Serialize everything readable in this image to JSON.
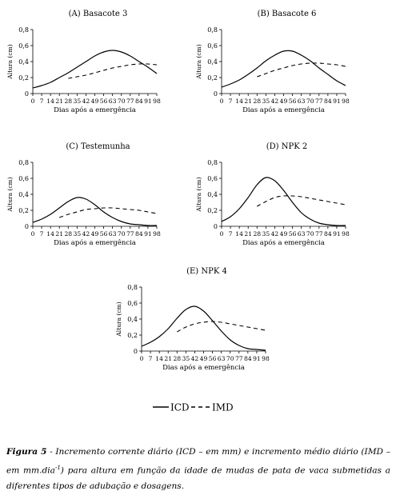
{
  "chart_data": [
    {
      "type": "line",
      "title": "(A) Basacote 3",
      "xlabel": "Dias após a emergência",
      "ylabel": "Altura (cm)",
      "x_ticks": [
        "0",
        "7",
        "14",
        "21",
        "28",
        "35",
        "42",
        "49",
        "56",
        "63",
        "70",
        "77",
        "84",
        "91",
        "98"
      ],
      "y_ticks": [
        "0",
        "0,2",
        "0,4",
        "0,6",
        "0,8"
      ],
      "xlim": [
        0,
        98
      ],
      "ylim": [
        0,
        0.8
      ],
      "series": [
        {
          "name": "ICD",
          "style": "solid",
          "x": [
            0,
            7,
            14,
            21,
            28,
            35,
            42,
            49,
            56,
            63,
            70,
            77,
            84,
            91,
            98
          ],
          "y": [
            0.07,
            0.1,
            0.14,
            0.2,
            0.26,
            0.33,
            0.4,
            0.47,
            0.52,
            0.54,
            0.52,
            0.47,
            0.4,
            0.33,
            0.25
          ]
        },
        {
          "name": "IMD",
          "style": "dashed",
          "x": [
            28,
            35,
            42,
            49,
            56,
            63,
            70,
            77,
            84,
            91,
            98
          ],
          "y": [
            0.19,
            0.21,
            0.23,
            0.26,
            0.29,
            0.32,
            0.34,
            0.36,
            0.37,
            0.37,
            0.36
          ]
        }
      ]
    },
    {
      "type": "line",
      "title": "(B) Basacote 6",
      "xlabel": "Dias após a emergência",
      "ylabel": "Altura (cm)",
      "x_ticks": [
        "0",
        "7",
        "14",
        "21",
        "28",
        "35",
        "42",
        "49",
        "56",
        "63",
        "70",
        "77",
        "84",
        "91",
        "98"
      ],
      "y_ticks": [
        "0",
        "0,2",
        "0,4",
        "0,6",
        "0,8"
      ],
      "xlim": [
        0,
        98
      ],
      "ylim": [
        0,
        0.8
      ],
      "series": [
        {
          "name": "ICD",
          "style": "solid",
          "x": [
            0,
            7,
            14,
            21,
            28,
            35,
            42,
            49,
            56,
            63,
            70,
            77,
            84,
            91,
            98
          ],
          "y": [
            0.08,
            0.12,
            0.17,
            0.24,
            0.32,
            0.41,
            0.48,
            0.53,
            0.53,
            0.48,
            0.41,
            0.32,
            0.24,
            0.16,
            0.1
          ]
        },
        {
          "name": "IMD",
          "style": "dashed",
          "x": [
            28,
            35,
            42,
            49,
            56,
            63,
            70,
            77,
            84,
            91,
            98
          ],
          "y": [
            0.21,
            0.25,
            0.29,
            0.32,
            0.35,
            0.37,
            0.38,
            0.38,
            0.37,
            0.36,
            0.34
          ]
        }
      ]
    },
    {
      "type": "line",
      "title": "(C) Testemunha",
      "xlabel": "Dias após a emergência",
      "ylabel": "Altura (cm)",
      "x_ticks": [
        "0",
        "7",
        "14",
        "21",
        "28",
        "35",
        "42",
        "49",
        "56",
        "63",
        "70",
        "77",
        "84",
        "91",
        "98"
      ],
      "y_ticks": [
        "0",
        "0,2",
        "0,4",
        "0,6",
        "0,8"
      ],
      "xlim": [
        0,
        98
      ],
      "ylim": [
        0,
        0.8
      ],
      "series": [
        {
          "name": "ICD",
          "style": "solid",
          "x": [
            0,
            7,
            14,
            21,
            28,
            35,
            42,
            49,
            56,
            63,
            70,
            77,
            84,
            91,
            98
          ],
          "y": [
            0.05,
            0.09,
            0.15,
            0.23,
            0.31,
            0.36,
            0.34,
            0.27,
            0.18,
            0.11,
            0.06,
            0.03,
            0.02,
            0.01,
            0.01
          ]
        },
        {
          "name": "IMD",
          "style": "dashed",
          "x": [
            21,
            28,
            35,
            42,
            49,
            56,
            63,
            70,
            77,
            84,
            91,
            98
          ],
          "y": [
            0.11,
            0.15,
            0.18,
            0.21,
            0.22,
            0.23,
            0.23,
            0.22,
            0.21,
            0.2,
            0.18,
            0.16
          ]
        }
      ]
    },
    {
      "type": "line",
      "title": "(D) NPK 2",
      "xlabel": "Dias após a emergência",
      "ylabel": "Altura (cm)",
      "x_ticks": [
        "0",
        "7",
        "14",
        "21",
        "28",
        "35",
        "42",
        "49",
        "56",
        "63",
        "70",
        "77",
        "84",
        "91",
        "98"
      ],
      "y_ticks": [
        "0",
        "0,2",
        "0,4",
        "0,6",
        "0,8"
      ],
      "xlim": [
        0,
        98
      ],
      "ylim": [
        0,
        0.8
      ],
      "series": [
        {
          "name": "ICD",
          "style": "solid",
          "x": [
            0,
            7,
            14,
            21,
            28,
            35,
            42,
            49,
            56,
            63,
            70,
            77,
            84,
            91,
            98
          ],
          "y": [
            0.06,
            0.12,
            0.22,
            0.36,
            0.52,
            0.61,
            0.57,
            0.45,
            0.3,
            0.17,
            0.09,
            0.04,
            0.02,
            0.01,
            0.01
          ]
        },
        {
          "name": "IMD",
          "style": "dashed",
          "x": [
            28,
            35,
            42,
            49,
            56,
            63,
            70,
            77,
            84,
            91,
            98
          ],
          "y": [
            0.25,
            0.31,
            0.36,
            0.38,
            0.38,
            0.37,
            0.35,
            0.33,
            0.31,
            0.29,
            0.27
          ]
        }
      ]
    },
    {
      "type": "line",
      "title": "(E) NPK 4",
      "xlabel": "Dias após a emergência",
      "ylabel": "Altura (cm)",
      "x_ticks": [
        "0",
        "7",
        "14",
        "21",
        "28",
        "35",
        "42",
        "49",
        "56",
        "63",
        "70",
        "77",
        "84",
        "91",
        "98"
      ],
      "y_ticks": [
        "0",
        "0,2",
        "0,4",
        "0,6",
        "0,8"
      ],
      "xlim": [
        0,
        98
      ],
      "ylim": [
        0,
        0.8
      ],
      "series": [
        {
          "name": "ICD",
          "style": "solid",
          "x": [
            0,
            7,
            14,
            21,
            28,
            35,
            42,
            49,
            56,
            63,
            70,
            77,
            84,
            91,
            98
          ],
          "y": [
            0.06,
            0.11,
            0.18,
            0.28,
            0.41,
            0.52,
            0.56,
            0.5,
            0.38,
            0.25,
            0.14,
            0.07,
            0.03,
            0.02,
            0.01
          ]
        },
        {
          "name": "IMD",
          "style": "dashed",
          "x": [
            28,
            35,
            42,
            49,
            56,
            63,
            70,
            77,
            84,
            91,
            98
          ],
          "y": [
            0.24,
            0.3,
            0.34,
            0.36,
            0.37,
            0.36,
            0.34,
            0.32,
            0.3,
            0.28,
            0.26
          ]
        }
      ]
    }
  ],
  "legend": {
    "icd_label": "ICD",
    "imd_label": "IMD"
  },
  "caption": {
    "label": "Figura 5",
    "text_before_sup": " - Incremento corrente diário (ICD – em mm) e incremento médio diário (IMD – em mm.dia",
    "superscript": "-1",
    "text_after_sup": ") para altura em função da idade de mudas de pata de vaca submetidas a diferentes tipos de adubação e dosagens."
  }
}
